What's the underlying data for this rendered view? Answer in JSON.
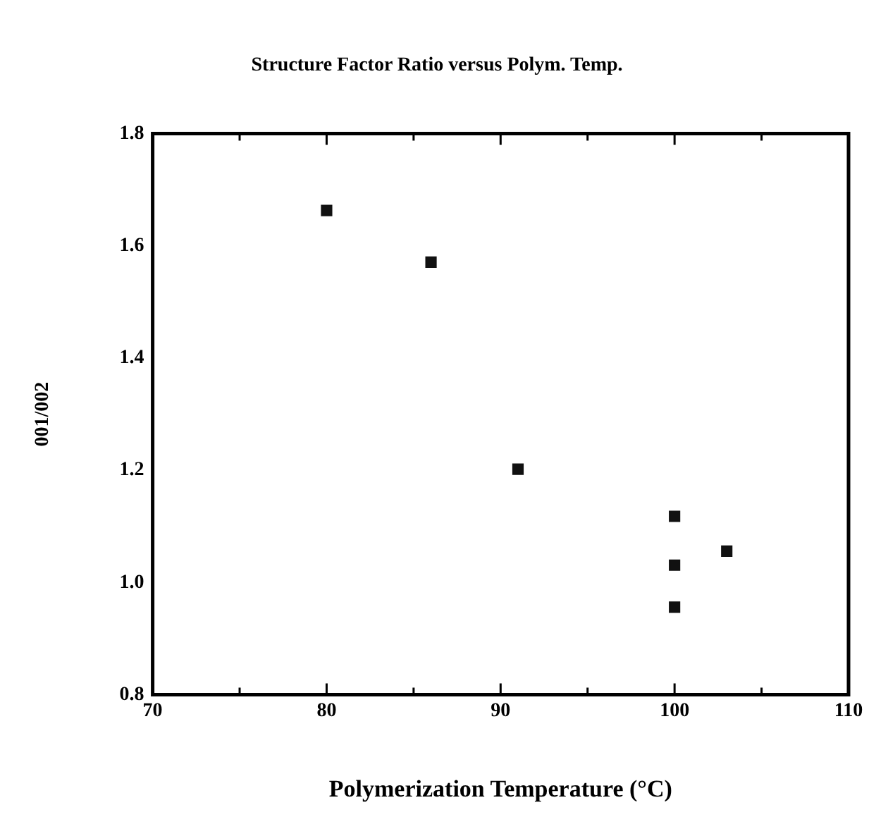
{
  "chart_data": {
    "type": "scatter",
    "title": "Structure Factor Ratio versus Polym. Temp.",
    "xlabel": "Polymerization Temperature (°C)",
    "ylabel": "001/002",
    "x": [
      80,
      86,
      91,
      100,
      100,
      100,
      103
    ],
    "series": [
      {
        "color": "#111111",
        "values": [
          1.663,
          1.571,
          1.202,
          1.118,
          1.031,
          0.956,
          1.056
        ]
      }
    ],
    "xlim": [
      70,
      110
    ],
    "xticks": [
      70,
      80,
      90,
      100,
      110
    ],
    "ylim": [
      0.8,
      1.8
    ],
    "yticks": [
      0.8,
      {
        "value": 1,
        "label": "1.0"
      },
      1.2,
      1.4,
      1.6,
      1.8
    ],
    "grid": false,
    "legend": false,
    "marker": "square"
  }
}
